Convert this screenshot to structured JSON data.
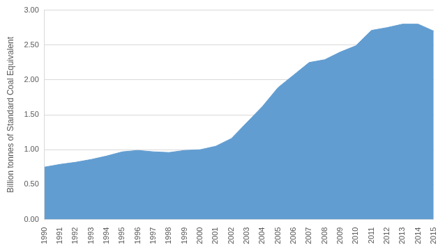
{
  "chart_data": {
    "type": "area",
    "y_label": "Billion tonnes of Standard Coal Equivalent",
    "categories": [
      "1990",
      "1991",
      "1992",
      "1993",
      "1994",
      "1995",
      "1996",
      "1997",
      "1998",
      "1999",
      "2000",
      "2001",
      "2002",
      "2003",
      "2004",
      "2005",
      "2006",
      "2007",
      "2008",
      "2009",
      "2010",
      "2011",
      "2012",
      "2013",
      "2014",
      "2015"
    ],
    "values": [
      0.75,
      0.79,
      0.82,
      0.86,
      0.91,
      0.97,
      0.99,
      0.97,
      0.96,
      0.99,
      1.0,
      1.05,
      1.16,
      1.39,
      1.62,
      1.89,
      2.07,
      2.25,
      2.29,
      2.4,
      2.49,
      2.71,
      2.75,
      2.8,
      2.8,
      2.7
    ],
    "color": "#629dd1",
    "ylim": [
      0,
      3
    ],
    "yticks": [
      {
        "value": 0,
        "label": "0.00"
      },
      {
        "value": 0.5,
        "label": "0.50"
      },
      {
        "value": 1,
        "label": "1.00"
      },
      {
        "value": 1.5,
        "label": "1.50"
      },
      {
        "value": 2,
        "label": "2.00"
      },
      {
        "value": 2.5,
        "label": "2.50"
      },
      {
        "value": 3,
        "label": "3.00"
      }
    ],
    "grid": true
  }
}
